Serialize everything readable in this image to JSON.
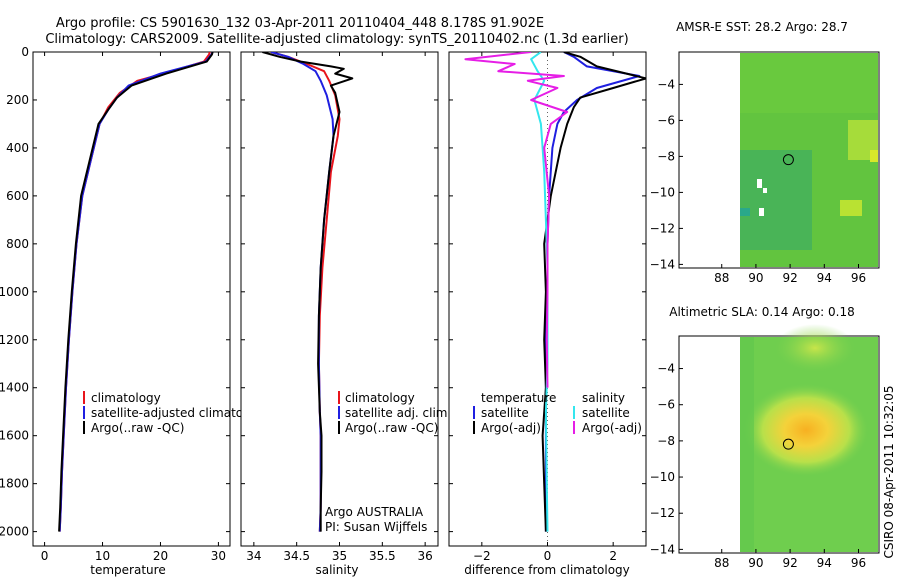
{
  "header": {
    "line1": "Argo profile: CS 5901630_132 03-Apr-2011 20110404_448 8.178S 91.902E",
    "line2": "Climatology: CARS2009. Satellite-adjusted climatology: synTS_20110402.nc (1.3d earlier)"
  },
  "side_label": "CSIRO 08-Apr-2011 10:32:05",
  "colors": {
    "climatology": "#e8141b",
    "satellite": "#1f1fe0",
    "argo": "#000000",
    "salinity_sat": "#33e6ee",
    "salinity_argo": "#e61ee6"
  },
  "chart_data": [
    {
      "type": "line",
      "xlabel": "temperature",
      "ylabel": "",
      "xlim": [
        -2,
        32
      ],
      "ylim": [
        2060,
        0
      ],
      "xticks": [
        0,
        10,
        20,
        30
      ],
      "yticks": [
        0,
        200,
        400,
        600,
        800,
        1000,
        1200,
        1400,
        1600,
        1800,
        2000
      ],
      "legend": [
        "climatology",
        "satellite-adjusted climatology",
        "Argo(..raw -QC)"
      ],
      "series": [
        {
          "name": "climatology",
          "color": "#e8141b",
          "x": [
            28.5,
            28.4,
            27.5,
            22,
            16,
            13,
            11,
            9.5,
            8,
            6.5,
            5.5,
            4.8,
            4.2,
            3.7,
            3.3,
            3.0,
            2.8,
            2.6
          ],
          "y": [
            0,
            10,
            40,
            80,
            120,
            170,
            230,
            300,
            450,
            600,
            800,
            1000,
            1200,
            1400,
            1600,
            1750,
            1900,
            2000
          ]
        },
        {
          "name": "satellite-adjusted climatology",
          "color": "#1f1fe0",
          "x": [
            29.0,
            28.8,
            27.8,
            20,
            14.5,
            12.5,
            11,
            9.5,
            8,
            6.5,
            5.5,
            4.8,
            4.2,
            3.7,
            3.3,
            3.0,
            2.8,
            2.6
          ],
          "y": [
            0,
            10,
            40,
            90,
            140,
            190,
            240,
            300,
            450,
            600,
            800,
            1000,
            1200,
            1400,
            1600,
            1750,
            1900,
            2000
          ]
        },
        {
          "name": "Argo(..raw -QC)",
          "color": "#000000",
          "x": [
            29.0,
            28.9,
            28.0,
            21,
            15,
            12.5,
            11,
            9.3,
            7.8,
            6.3,
            5.4,
            4.7,
            4.1,
            3.6,
            3.2,
            2.9,
            2.7,
            2.5
          ],
          "y": [
            0,
            10,
            40,
            90,
            140,
            190,
            240,
            300,
            450,
            600,
            800,
            1000,
            1200,
            1400,
            1600,
            1750,
            1900,
            2000
          ]
        }
      ]
    },
    {
      "type": "line",
      "xlabel": "salinity",
      "xlim": [
        33.85,
        36.15
      ],
      "ylim": [
        2060,
        0
      ],
      "xticks": [
        34,
        34.5,
        35,
        35.5,
        36
      ],
      "legend": [
        "climatology",
        "satellite adj. clim.",
        "Argo(..raw -QC)"
      ],
      "annotations": [
        "Argo AUSTRALIA",
        "PI: Susan Wijffels"
      ],
      "series": [
        {
          "name": "climatology",
          "color": "#e8141b",
          "x": [
            34.2,
            34.4,
            34.62,
            34.82,
            34.88,
            34.95,
            35.0,
            34.98,
            34.9,
            34.85,
            34.8,
            34.77,
            34.76,
            34.77,
            34.78,
            34.78,
            34.78,
            34.77
          ],
          "y": [
            0,
            20,
            50,
            80,
            120,
            180,
            280,
            350,
            500,
            700,
            900,
            1100,
            1300,
            1500,
            1600,
            1750,
            1900,
            2000
          ]
        },
        {
          "name": "satellite adj. clim.",
          "color": "#1f1fe0",
          "x": [
            34.2,
            34.4,
            34.58,
            34.72,
            34.78,
            34.85,
            34.92,
            34.93,
            34.88,
            34.82,
            34.78,
            34.76,
            34.76,
            34.77,
            34.78,
            34.78,
            34.78,
            34.77
          ],
          "y": [
            0,
            20,
            50,
            80,
            120,
            180,
            280,
            350,
            500,
            700,
            900,
            1100,
            1300,
            1500,
            1600,
            1750,
            1900,
            2000
          ]
        },
        {
          "name": "Argo(..raw -QC)",
          "color": "#000000",
          "x": [
            34.1,
            34.3,
            34.55,
            34.9,
            35.05,
            34.95,
            35.15,
            34.9,
            34.95,
            35.0,
            34.93,
            34.88,
            34.82,
            34.78,
            34.76,
            34.75,
            34.77,
            34.79,
            34.79,
            34.78,
            34.78
          ],
          "y": [
            0,
            20,
            40,
            60,
            70,
            90,
            110,
            140,
            170,
            250,
            350,
            500,
            700,
            900,
            1100,
            1300,
            1500,
            1600,
            1750,
            1900,
            2000
          ]
        }
      ]
    },
    {
      "type": "line",
      "xlabel": "difference from climatology",
      "xlim": [
        -3.0,
        3.0
      ],
      "ylim": [
        2060,
        0
      ],
      "xticks": [
        -2,
        0,
        2
      ],
      "legend_titles": [
        "temperature",
        "salinity"
      ],
      "legend": [
        "satellite",
        "Argo(-adj)",
        "satellite",
        "Argo(-adj)"
      ],
      "series": [
        {
          "name": "satellite",
          "color": "#1f1fe0",
          "x": [
            0.5,
            0.8,
            1.2,
            2.8,
            1.5,
            0.9,
            0.5,
            0.3,
            0.15,
            0.05,
            0.0,
            0.0,
            -0.05,
            -0.05,
            -0.05,
            -0.05
          ],
          "y": [
            0,
            20,
            60,
            100,
            150,
            200,
            250,
            300,
            400,
            600,
            800,
            1000,
            1200,
            1500,
            1800,
            2000
          ]
        },
        {
          "name": "Argo(-adj)",
          "color": "#000000",
          "x": [
            0.5,
            1.0,
            1.5,
            3.0,
            2.0,
            1.0,
            0.8,
            0.6,
            0.4,
            0.25,
            0.1,
            0.0,
            -0.1,
            -0.05,
            -0.1,
            -0.05,
            -0.15,
            -0.1,
            -0.05
          ],
          "y": [
            0,
            20,
            60,
            110,
            150,
            190,
            230,
            300,
            400,
            500,
            600,
            700,
            800,
            1000,
            1200,
            1400,
            1600,
            1800,
            2000
          ]
        },
        {
          "name": "satellite",
          "color": "#33e6ee",
          "x": [
            -0.2,
            -0.5,
            -0.3,
            -0.1,
            -0.4,
            -0.2,
            -0.15,
            -0.1,
            -0.05,
            0.0,
            0.0,
            0.0,
            -0.05,
            -0.02,
            0.0
          ],
          "y": [
            0,
            30,
            80,
            120,
            200,
            300,
            400,
            500,
            700,
            900,
            1100,
            1300,
            1500,
            1800,
            2000
          ]
        },
        {
          "name": "Argo(-adj)",
          "color": "#e61ee6",
          "x": [
            -0.5,
            -2.5,
            -1.0,
            -1.5,
            0.5,
            -0.6,
            0.3,
            -0.5,
            0.6,
            0.1,
            -0.1,
            0.05,
            0.0,
            0.0,
            -0.02,
            0.0
          ],
          "y": [
            0,
            30,
            50,
            80,
            100,
            120,
            150,
            200,
            250,
            300,
            400,
            600,
            800,
            1000,
            1200,
            1400
          ]
        }
      ]
    },
    {
      "type": "heatmap",
      "title": "AMSR-E SST: 28.2 Argo: 28.7",
      "xlim": [
        85.5,
        97.2
      ],
      "ylim": [
        -14.2,
        -2.2
      ],
      "xticks": [
        88,
        90,
        92,
        94,
        96
      ],
      "yticks": [
        -4,
        -6,
        -8,
        -10,
        -12,
        -14
      ],
      "marker": {
        "lon": 91.9,
        "lat": -8.18
      }
    },
    {
      "type": "heatmap",
      "title": "Altimetric SLA: 0.14 Argo: 0.18",
      "xlim": [
        85.5,
        97.2
      ],
      "ylim": [
        -14.2,
        -2.2
      ],
      "xticks": [
        88,
        90,
        92,
        94,
        96
      ],
      "yticks": [
        -4,
        -6,
        -8,
        -10,
        -12,
        -14
      ],
      "marker": {
        "lon": 91.9,
        "lat": -8.18
      }
    }
  ]
}
